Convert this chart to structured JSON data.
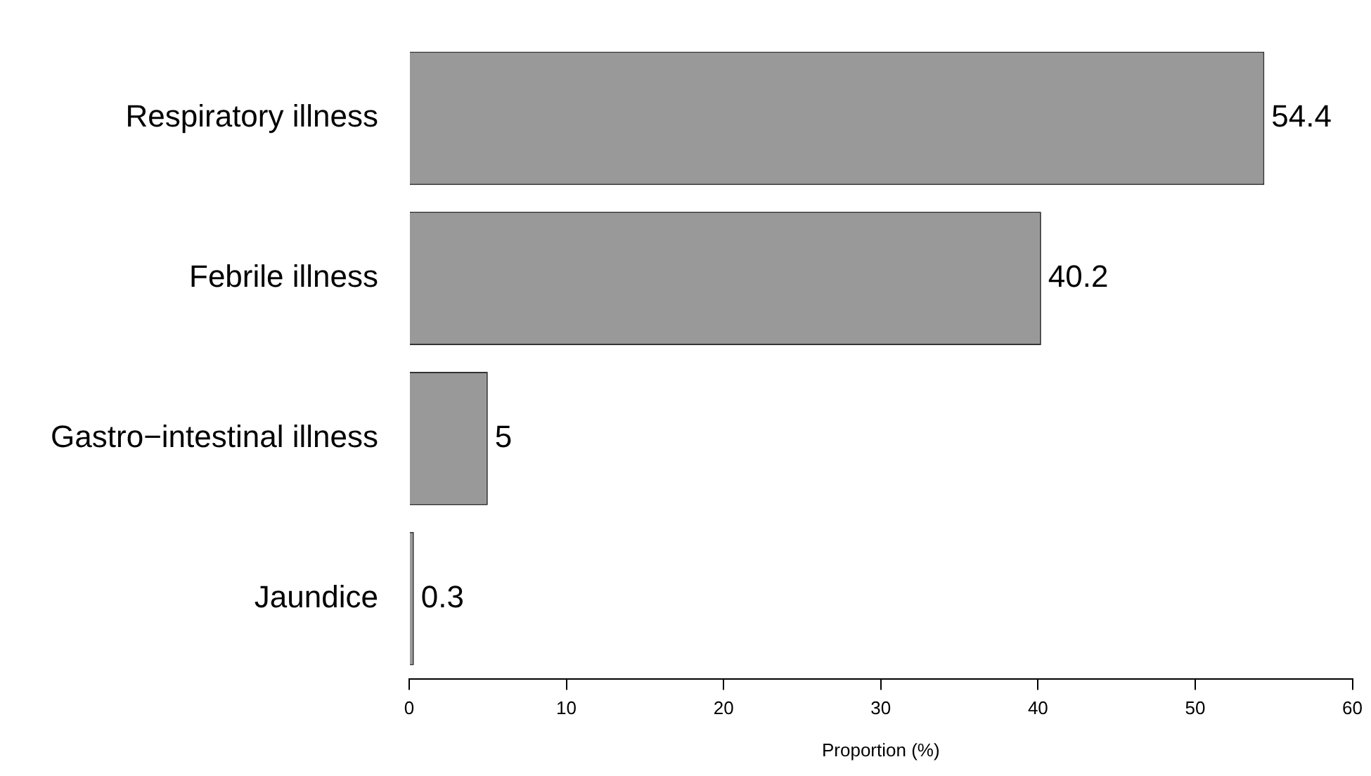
{
  "chart_data": {
    "type": "bar",
    "orientation": "horizontal",
    "xlabel": "Proportion (%)",
    "categories": [
      "Respiratory illness",
      "Febrile illness",
      "Gastro−intestinal illness",
      "Jaundice"
    ],
    "values": [
      54.4,
      40.2,
      5,
      0.3
    ],
    "color": "#999999",
    "xlim": [
      0,
      60
    ],
    "xticks": [
      0,
      10,
      20,
      30,
      40,
      50,
      60
    ],
    "grid": false,
    "data_labels": true
  }
}
